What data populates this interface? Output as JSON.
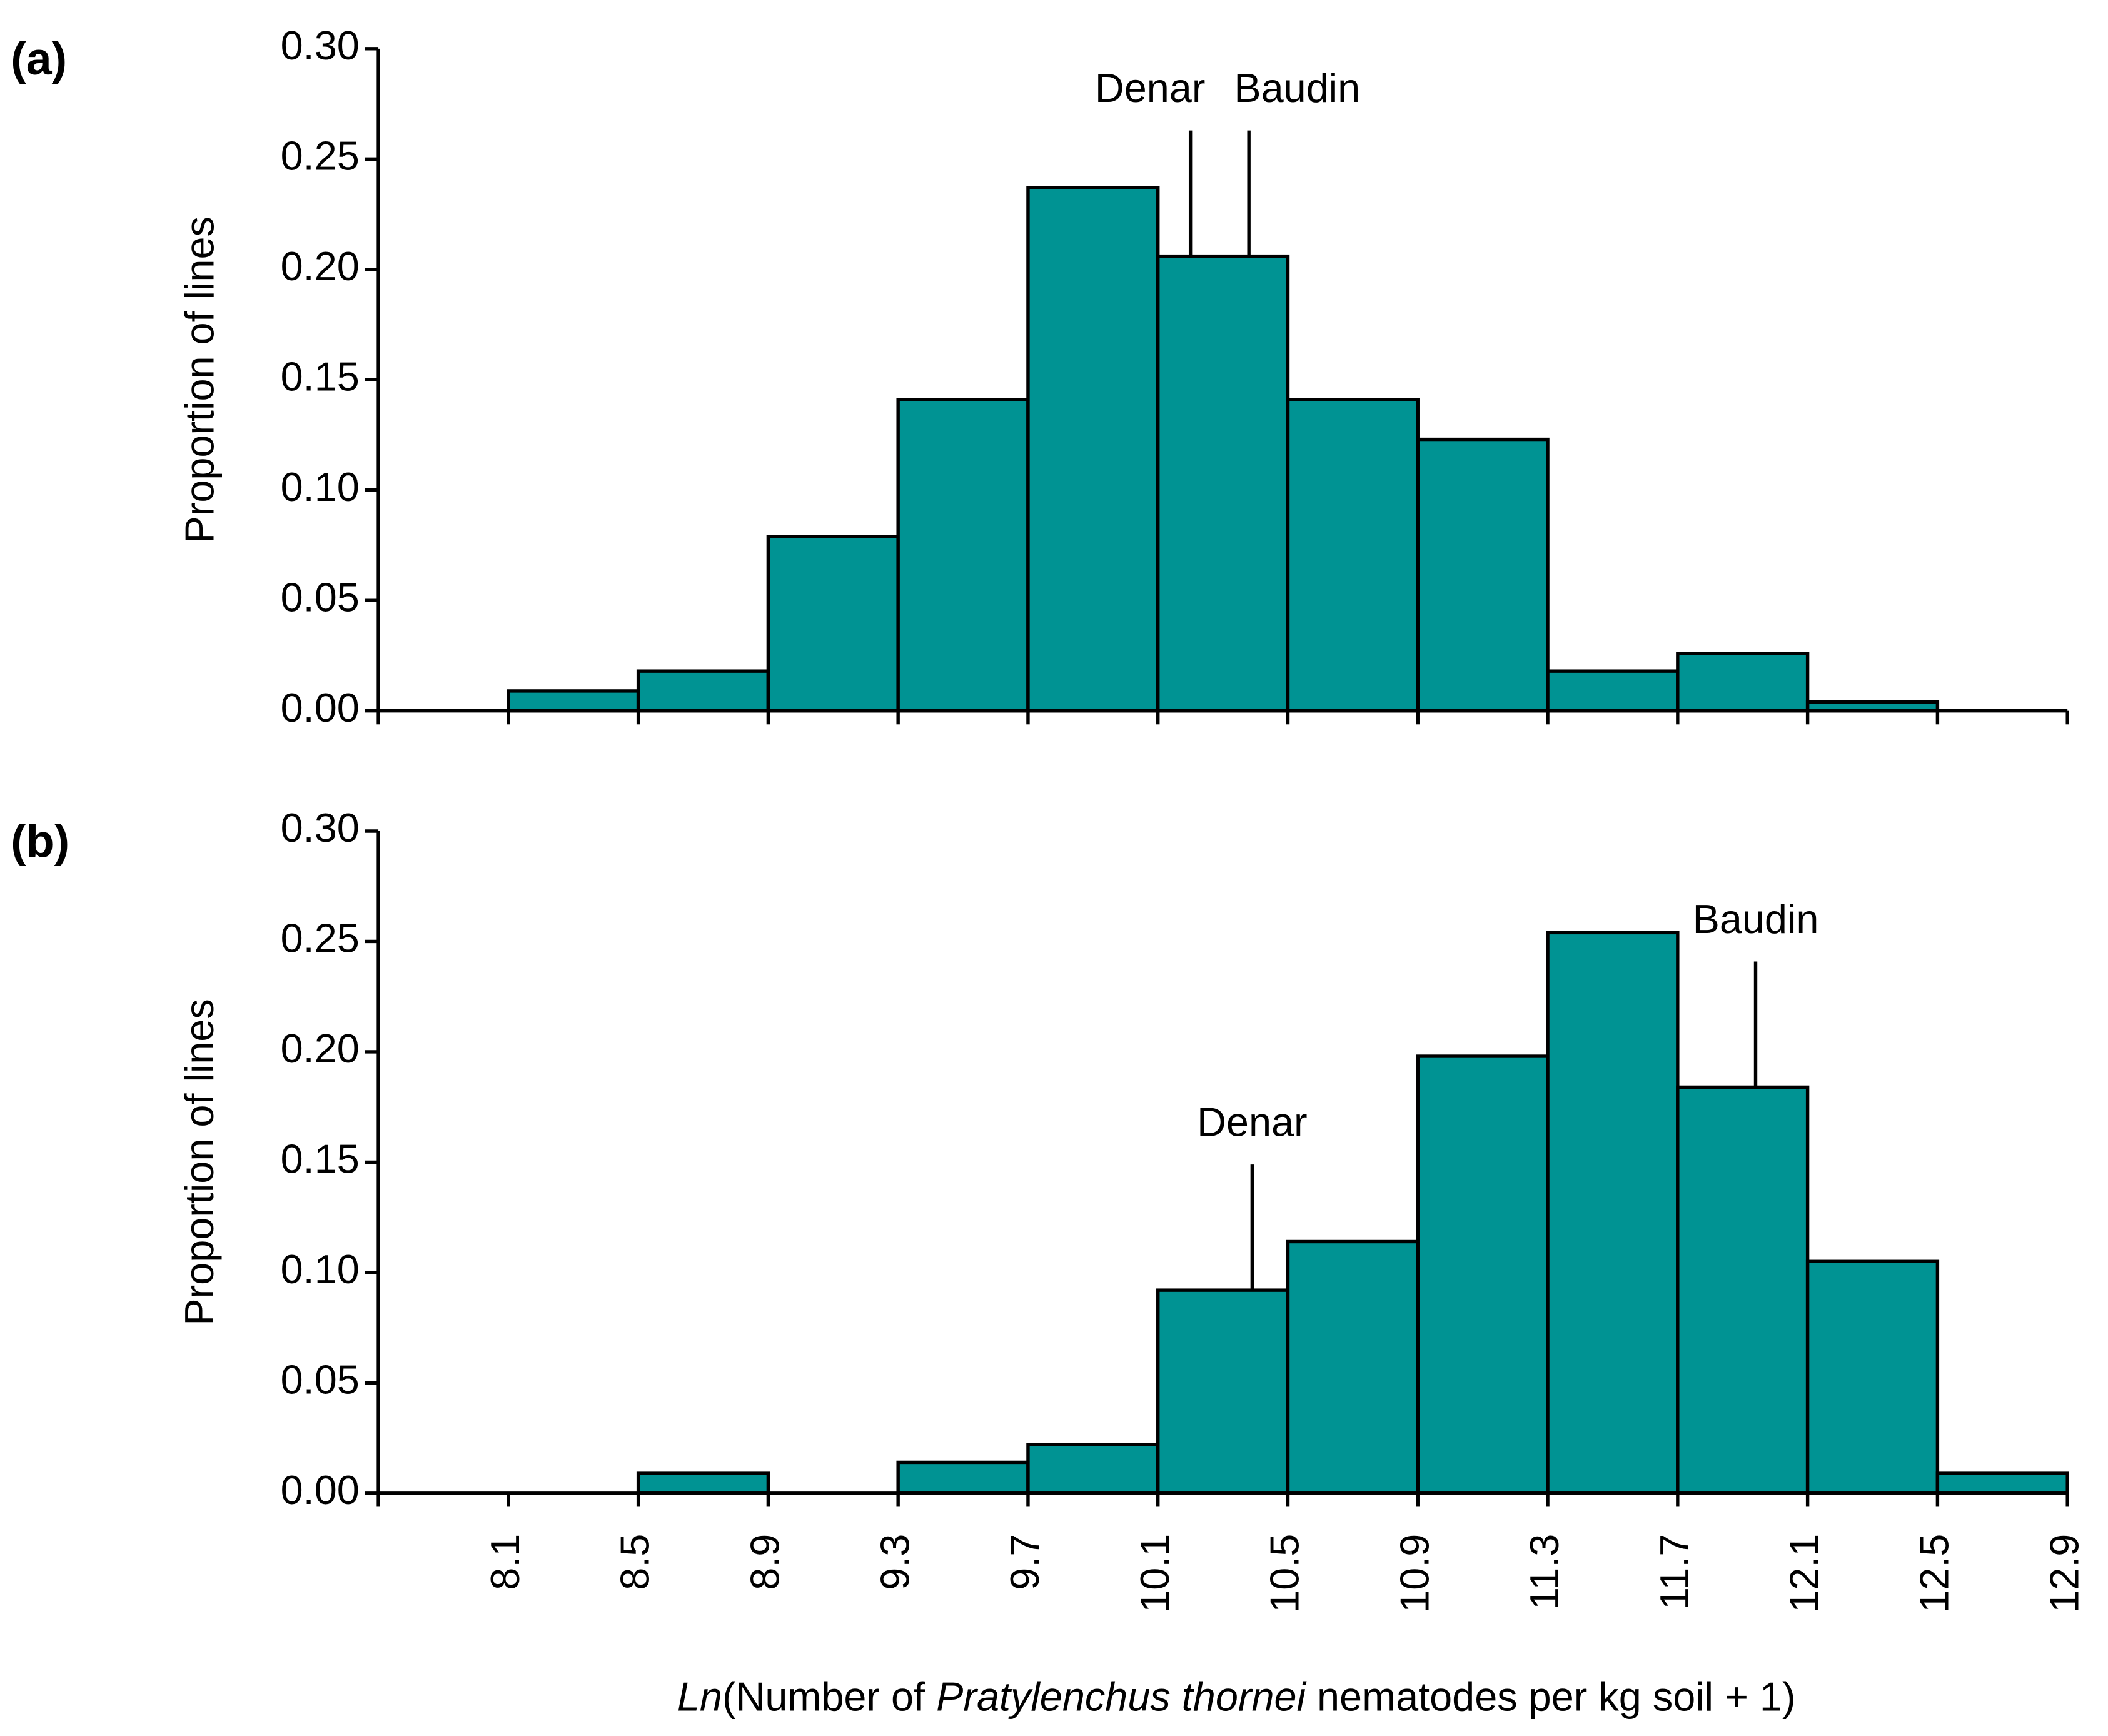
{
  "chart_data": [
    {
      "type": "histogram",
      "panel_label": "(a)",
      "ylabel": "Proportion of lines",
      "color": "#009393",
      "bins": [
        8.1,
        8.5,
        8.9,
        9.3,
        9.7,
        10.1,
        10.5,
        10.9,
        11.3,
        11.7,
        12.1,
        12.5,
        12.9
      ],
      "values": [
        0.009,
        0.018,
        0.079,
        0.141,
        0.237,
        0.206,
        0.141,
        0.123,
        0.018,
        0.026,
        0.004,
        0
      ],
      "xlim": [
        7.7,
        12.9
      ],
      "ylim": [
        0,
        0.3
      ],
      "yticks": [
        {
          "value": 0,
          "label": "0.00"
        },
        {
          "value": 0.05,
          "label": "0.05"
        },
        {
          "value": 0.1,
          "label": "0.10"
        },
        {
          "value": 0.15,
          "label": "0.15"
        },
        {
          "value": 0.2,
          "label": "0.20"
        },
        {
          "value": 0.25,
          "label": "0.25"
        },
        {
          "value": 0.3,
          "label": "0.30"
        }
      ],
      "annotations": [
        {
          "text": "Denar",
          "x": 10.2
        },
        {
          "text": "Baudin",
          "x": 10.38
        }
      ]
    },
    {
      "type": "histogram",
      "panel_label": "(b)",
      "ylabel": "Proportion of lines",
      "color": "#009393",
      "bins": [
        8.1,
        8.5,
        8.9,
        9.3,
        9.7,
        10.1,
        10.5,
        10.9,
        11.3,
        11.7,
        12.1,
        12.5,
        12.9
      ],
      "values": [
        0,
        0.009,
        0,
        0.014,
        0.022,
        0.092,
        0.114,
        0.198,
        0.254,
        0.184,
        0.105,
        0.009
      ],
      "xlim": [
        7.7,
        12.9
      ],
      "ylim": [
        0,
        0.3
      ],
      "xticks": [
        8.1,
        8.5,
        8.9,
        9.3,
        9.7,
        10.1,
        10.5,
        10.9,
        11.3,
        11.7,
        12.1,
        12.5,
        12.9
      ],
      "yticks": [
        {
          "value": 0,
          "label": "0.00"
        },
        {
          "value": 0.05,
          "label": "0.05"
        },
        {
          "value": 0.1,
          "label": "0.10"
        },
        {
          "value": 0.15,
          "label": "0.15"
        },
        {
          "value": 0.2,
          "label": "0.20"
        },
        {
          "value": 0.25,
          "label": "0.25"
        },
        {
          "value": 0.3,
          "label": "0.30"
        }
      ],
      "annotations": [
        {
          "text": "Denar",
          "x": 10.39
        },
        {
          "text": "Baudin",
          "x": 11.94
        }
      ],
      "xlabel": [
        {
          "text": "Ln",
          "italic": true
        },
        {
          "text": "(Number of ",
          "italic": false
        },
        {
          "text": "Pratylenchus thornei",
          "italic": true
        },
        {
          "text": " nematodes per kg soil + 1)",
          "italic": false
        }
      ]
    }
  ]
}
